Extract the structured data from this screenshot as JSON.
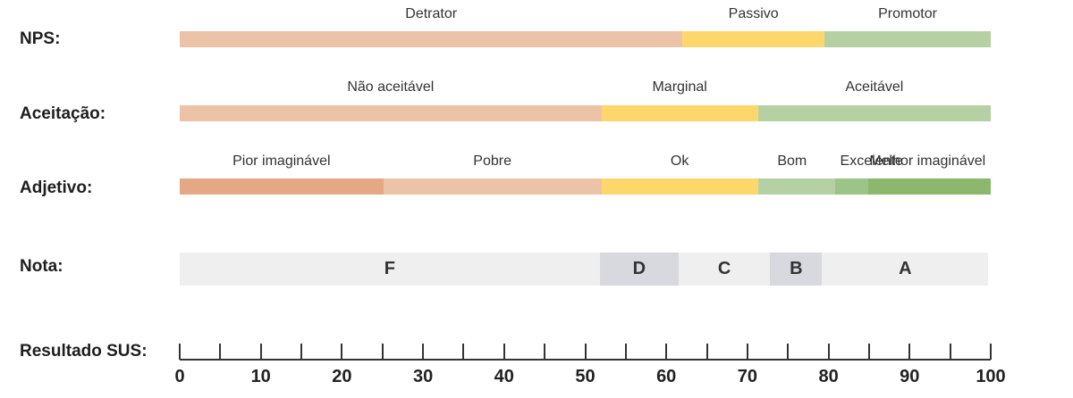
{
  "rows": {
    "nps": {
      "label": "NPS:",
      "segments": [
        {
          "name": "Detrator",
          "from": 0,
          "to": 62,
          "color": "#ecc3a6"
        },
        {
          "name": "Passivo",
          "from": 62,
          "to": 79.5,
          "color": "#fed76c"
        },
        {
          "name": "Promotor",
          "from": 79.5,
          "to": 100,
          "color": "#b5d1a4"
        }
      ]
    },
    "acceptance": {
      "label": "Aceitação:",
      "segments": [
        {
          "name": "Não aceitável",
          "from": 0,
          "to": 52,
          "color": "#ecc3a6"
        },
        {
          "name": "Marginal",
          "from": 52,
          "to": 71.3,
          "color": "#fed76c"
        },
        {
          "name": "Aceitável",
          "from": 71.3,
          "to": 100,
          "color": "#b5d1a4"
        }
      ]
    },
    "adjective": {
      "label": "Adjetivo:",
      "segments": [
        {
          "name": "Pior imaginável",
          "from": 0,
          "to": 25.1,
          "color": "#e4a885"
        },
        {
          "name": "Pobre",
          "from": 25.1,
          "to": 52,
          "color": "#ecc3a6"
        },
        {
          "name": "Ok",
          "from": 52,
          "to": 71.3,
          "color": "#fed76c"
        },
        {
          "name": "Bom",
          "from": 71.3,
          "to": 80.8,
          "color": "#b5d1a4"
        },
        {
          "name": "Excelente",
          "from": 80.8,
          "to": 84.9,
          "color": "#9cc488"
        },
        {
          "name": "Melhor imaginável",
          "from": 84.9,
          "to": 100,
          "color": "#8bb86c"
        }
      ]
    },
    "grade": {
      "label": "Nota:",
      "segments": [
        {
          "name": "F",
          "from": 0,
          "to": 51.8,
          "color": "#efefef"
        },
        {
          "name": "D",
          "from": 51.8,
          "to": 61.5,
          "color": "#d8d8df"
        },
        {
          "name": "C",
          "from": 61.5,
          "to": 72.8,
          "color": "#efefef"
        },
        {
          "name": "B",
          "from": 72.8,
          "to": 79.2,
          "color": "#d8d8df"
        },
        {
          "name": "A",
          "from": 79.2,
          "to": 99.7,
          "color": "#efefef"
        }
      ]
    },
    "sus": {
      "label": "Resultado SUS:",
      "min": 0,
      "max": 100,
      "tick_labels": [
        "0",
        "10",
        "20",
        "30",
        "40",
        "50",
        "60",
        "70",
        "80",
        "90",
        "100"
      ]
    }
  }
}
